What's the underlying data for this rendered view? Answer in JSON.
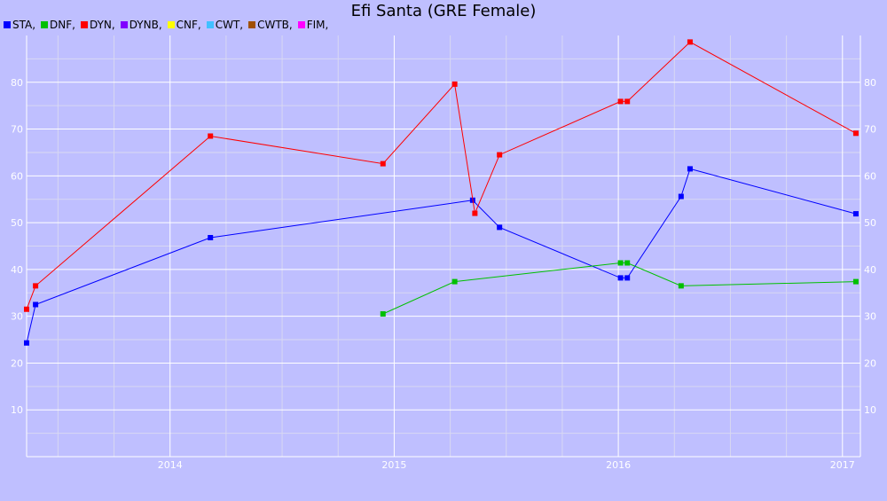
{
  "chart_data": {
    "type": "line",
    "title": "Efi Santa (GRE Female)",
    "legend": [
      "STA,",
      "DNF,",
      "DYN,",
      "DYNB,",
      "CNF,",
      "CWT,",
      "CWTB,",
      "FIM,"
    ],
    "legend_colors": [
      "#0000ff",
      "#00c000",
      "#ff0000",
      "#8000ff",
      "#ffff00",
      "#40c0ff",
      "#a05000",
      "#ff00ff"
    ],
    "x_tick_labels": [
      "2014",
      "2015",
      "2016",
      "2017"
    ],
    "x_ticks": [
      2014,
      2015,
      2016,
      2017
    ],
    "xlim": [
      2013.36,
      2017.08
    ],
    "y_tick_labels": [
      "10",
      "20",
      "30",
      "40",
      "50",
      "60",
      "70",
      "80"
    ],
    "y_ticks": [
      10,
      20,
      30,
      40,
      50,
      60,
      70,
      80
    ],
    "ylim": [
      0,
      90
    ],
    "grid": true,
    "legend_placement": "top-left",
    "series": [
      {
        "name": "STA",
        "color": "#0000ff",
        "x": [
          2013.36,
          2013.4,
          2014.18,
          2015.35,
          2015.47,
          2016.01,
          2016.04,
          2016.28,
          2016.32,
          2017.06
        ],
        "y": [
          24.3,
          32.5,
          46.8,
          54.8,
          49.0,
          38.2,
          38.2,
          55.6,
          61.5,
          51.9
        ]
      },
      {
        "name": "DNF",
        "color": "#00c000",
        "x": [
          2014.95,
          2015.27,
          2016.01,
          2016.04,
          2016.28,
          2017.06
        ],
        "y": [
          30.5,
          37.4,
          41.4,
          41.4,
          36.5,
          37.4
        ]
      },
      {
        "name": "DYN",
        "color": "#ff0000",
        "x": [
          2013.36,
          2013.4,
          2014.18,
          2014.95,
          2015.27,
          2015.36,
          2015.47,
          2016.01,
          2016.04,
          2016.32,
          2017.06
        ],
        "y": [
          31.5,
          36.5,
          68.5,
          62.6,
          79.6,
          52.0,
          64.5,
          75.9,
          75.9,
          88.6,
          69.1
        ]
      }
    ]
  }
}
